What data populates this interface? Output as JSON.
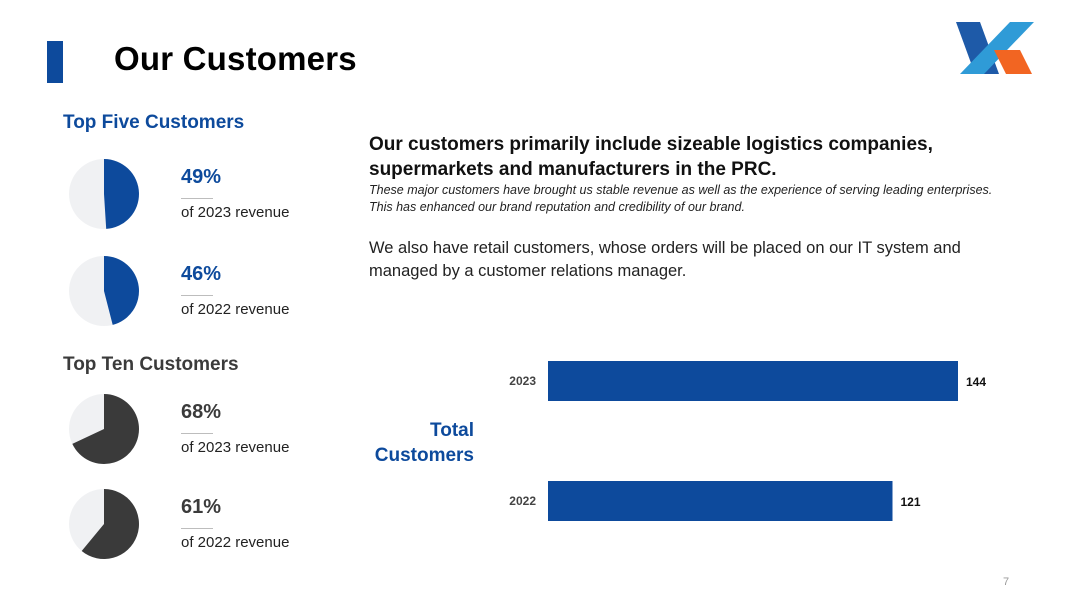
{
  "slide": {
    "title": "Our Customers",
    "page_number": "7"
  },
  "colors": {
    "brand_blue": "#0d4a9c",
    "dark_gray": "#3a3a3a",
    "pie_background": "#f0f1f3",
    "logo_orange": "#f26522"
  },
  "top_five": {
    "heading": "Top Five Customers",
    "items": [
      {
        "value": "49%",
        "label": "of 2023 revenue",
        "share": 0.49
      },
      {
        "value": "46%",
        "label": "of 2022 revenue",
        "share": 0.46
      }
    ]
  },
  "top_ten": {
    "heading": "Top Ten Customers",
    "items": [
      {
        "value": "68%",
        "label": "of 2023 revenue",
        "share": 0.68
      },
      {
        "value": "61%",
        "label": "of 2022 revenue",
        "share": 0.61
      }
    ]
  },
  "text": {
    "headline": "Our customers primarily include sizeable logistics companies, supermarkets and manufacturers in the PRC.",
    "subtext": "These major customers have brought us stable revenue as well as the experience of serving leading enterprises. This has enhanced our brand reputation and credibility of our brand.",
    "body": "We also have retail customers, whose orders will be placed on our IT system and managed by a customer relations manager."
  },
  "chart_data": {
    "type": "bar",
    "orientation": "horizontal",
    "title": "Total Customers",
    "categories": [
      "2023",
      "2022"
    ],
    "values": [
      144,
      121
    ],
    "data_labels": [
      "144",
      "121"
    ],
    "xlim": [
      0,
      144
    ],
    "grid": false,
    "legend": "none",
    "bar_color": "#0d4a9c"
  }
}
